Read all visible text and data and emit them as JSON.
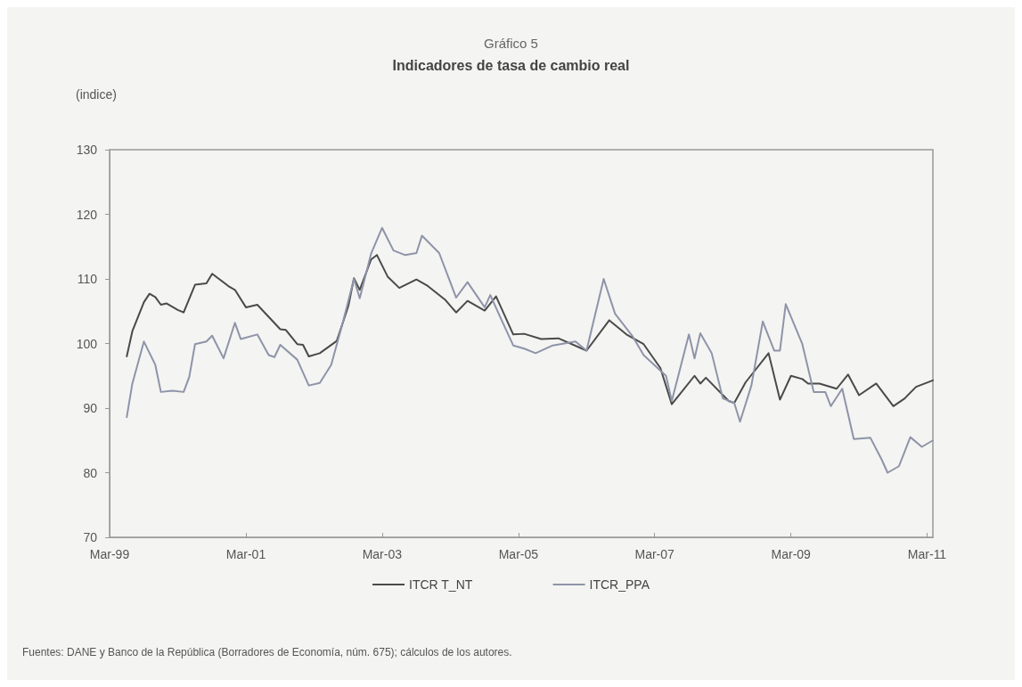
{
  "chart_data": {
    "type": "line",
    "subtitle": "Gráfico 5",
    "title": "Indicadores de tasa de cambio real",
    "ylabel": "(indice)",
    "xlim": [
      "1999-03",
      "2011-04"
    ],
    "xticks": [
      {
        "value": "1999-03",
        "label": "Mar-99"
      },
      {
        "value": "2001-03",
        "label": "Mar-01"
      },
      {
        "value": "2003-03",
        "label": "Mar-03"
      },
      {
        "value": "2005-03",
        "label": "Mar-05"
      },
      {
        "value": "2007-03",
        "label": "Mar-07"
      },
      {
        "value": "2009-03",
        "label": "Mar-09"
      },
      {
        "value": "2011-03",
        "label": "Mar-11"
      }
    ],
    "ylim": [
      70,
      130
    ],
    "yticks": [
      70,
      80,
      90,
      100,
      110,
      120,
      130
    ],
    "grid": false,
    "legend": "bottom",
    "marker": "none",
    "line_style": "solid",
    "series": [
      {
        "name": "ITCR T_NT",
        "color": "#4a4a4a",
        "x": [
          "1999-06",
          "1999-07",
          "1999-09",
          "1999-10",
          "1999-11",
          "1999-12",
          "2000-01",
          "2000-03",
          "2000-04",
          "2000-06",
          "2000-08",
          "2000-09",
          "2000-12",
          "2001-01",
          "2001-03",
          "2001-05",
          "2001-09",
          "2001-10",
          "2001-12",
          "2002-01",
          "2002-02",
          "2002-04",
          "2002-07",
          "2002-09",
          "2002-10",
          "2002-11",
          "2003-01",
          "2003-02",
          "2003-04",
          "2003-06",
          "2003-09",
          "2003-11",
          "2004-02",
          "2004-04",
          "2004-06",
          "2004-09",
          "2004-11",
          "2005-02",
          "2005-04",
          "2005-07",
          "2005-10",
          "2006-03",
          "2006-07",
          "2006-10",
          "2007-01",
          "2007-04",
          "2007-06",
          "2007-10",
          "2007-11",
          "2007-12",
          "2008-04",
          "2008-05",
          "2008-07",
          "2008-11",
          "2009-01",
          "2009-03",
          "2009-05",
          "2009-06",
          "2009-08",
          "2009-11",
          "2010-01",
          "2010-03",
          "2010-06",
          "2010-09",
          "2010-11",
          "2011-01",
          "2011-04"
        ],
        "values": [
          98.0,
          101.9,
          106.4,
          107.7,
          107.2,
          106.0,
          106.2,
          105.2,
          104.8,
          109.1,
          109.3,
          110.8,
          108.8,
          108.3,
          105.6,
          106.0,
          102.2,
          102.1,
          99.9,
          99.8,
          98.0,
          98.5,
          100.4,
          105.8,
          110.1,
          108.3,
          113.0,
          113.7,
          110.3,
          108.6,
          109.9,
          108.9,
          106.8,
          104.8,
          106.6,
          105.1,
          107.3,
          101.4,
          101.5,
          100.7,
          100.8,
          98.9,
          103.6,
          101.4,
          99.9,
          96.2,
          90.6,
          95.0,
          93.8,
          94.7,
          91.1,
          90.8,
          94.0,
          98.5,
          91.3,
          95.0,
          94.5,
          93.8,
          93.8,
          93.0,
          95.2,
          92.0,
          93.8,
          90.3,
          91.5,
          93.3,
          94.3
        ]
      },
      {
        "name": "ITCR_PPA",
        "color": "#8e94a8",
        "x": [
          "1999-06",
          "1999-07",
          "1999-09",
          "1999-11",
          "1999-12",
          "2000-02",
          "2000-04",
          "2000-05",
          "2000-06",
          "2000-08",
          "2000-09",
          "2000-11",
          "2001-01",
          "2001-02",
          "2001-05",
          "2001-07",
          "2001-08",
          "2001-09",
          "2001-12",
          "2002-02",
          "2002-04",
          "2002-06",
          "2002-08",
          "2002-10",
          "2002-11",
          "2003-01",
          "2003-03",
          "2003-05",
          "2003-07",
          "2003-09",
          "2003-10",
          "2004-01",
          "2004-04",
          "2004-06",
          "2004-09",
          "2004-10",
          "2004-12",
          "2005-02",
          "2005-04",
          "2005-06",
          "2005-09",
          "2006-01",
          "2006-03",
          "2006-06",
          "2006-08",
          "2006-11",
          "2007-01",
          "2007-05",
          "2007-06",
          "2007-09",
          "2007-10",
          "2007-11",
          "2008-01",
          "2008-03",
          "2008-05",
          "2008-06",
          "2008-08",
          "2008-10",
          "2008-12",
          "2009-01",
          "2009-02",
          "2009-05",
          "2009-07",
          "2009-09",
          "2009-10",
          "2009-12",
          "2010-02",
          "2010-05",
          "2010-07",
          "2010-08",
          "2010-10",
          "2010-12",
          "2011-02",
          "2011-04"
        ],
        "values": [
          88.6,
          93.8,
          100.3,
          96.7,
          92.5,
          92.7,
          92.5,
          94.8,
          99.9,
          100.3,
          101.2,
          97.7,
          103.2,
          100.7,
          101.4,
          98.2,
          97.9,
          99.8,
          97.5,
          93.5,
          93.9,
          96.7,
          103.1,
          110.0,
          107.0,
          113.9,
          117.9,
          114.4,
          113.7,
          114.0,
          116.7,
          114.0,
          107.1,
          109.5,
          105.6,
          107.5,
          103.6,
          99.7,
          99.2,
          98.5,
          99.7,
          100.3,
          98.9,
          110.0,
          104.6,
          101.2,
          98.2,
          95.0,
          91.1,
          101.4,
          97.7,
          101.6,
          98.5,
          91.5,
          90.8,
          87.9,
          93.5,
          103.4,
          98.9,
          98.9,
          106.1,
          99.9,
          92.5,
          92.5,
          90.3,
          93.0,
          85.2,
          85.4,
          82.0,
          80.0,
          81.0,
          85.5,
          84.0,
          85.0
        ]
      }
    ],
    "annotations": [
      "Fuentes: DANE y Banco de la República (Borradores de Economía, núm. 675); cálculos de los autores."
    ]
  }
}
